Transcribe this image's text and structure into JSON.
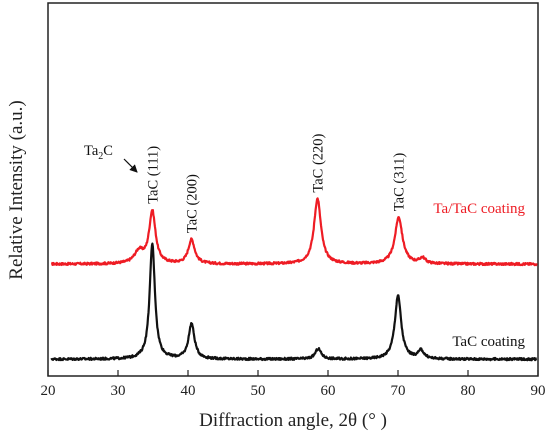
{
  "chart_data": {
    "type": "line",
    "title": "",
    "xlabel": "Diffraction angle, 2θ (° )",
    "ylabel": "Relative Intensity (a.u.)",
    "xlim": [
      20,
      90
    ],
    "xticks": [
      "20",
      "30",
      "40",
      "50",
      "60",
      "70",
      "80",
      "90"
    ],
    "yticks": [],
    "grid": false,
    "legend": "inline-right",
    "colors": {
      "top": "#ee1c24",
      "bottom": "#111111",
      "axis": "#222222"
    },
    "series": [
      {
        "name": "Ta/TaC coating",
        "color": "#ee1c24",
        "baseline": 0.3,
        "noise": 0.003,
        "peaks": [
          {
            "x": 33.0,
            "height": 0.032,
            "width": 0.8
          },
          {
            "x": 34.9,
            "height": 0.14,
            "width": 0.55
          },
          {
            "x": 40.5,
            "height": 0.065,
            "width": 0.55
          },
          {
            "x": 58.5,
            "height": 0.175,
            "width": 0.6
          },
          {
            "x": 70.1,
            "height": 0.125,
            "width": 0.65
          },
          {
            "x": 73.5,
            "height": 0.015,
            "width": 0.5
          }
        ]
      },
      {
        "name": "TaC coating",
        "color": "#111111",
        "baseline": 0.045,
        "noise": 0.003,
        "peaks": [
          {
            "x": 34.9,
            "height": 0.31,
            "width": 0.45
          },
          {
            "x": 40.5,
            "height": 0.095,
            "width": 0.5
          },
          {
            "x": 58.6,
            "height": 0.028,
            "width": 0.5
          },
          {
            "x": 70.0,
            "height": 0.17,
            "width": 0.55
          },
          {
            "x": 73.3,
            "height": 0.022,
            "width": 0.5
          }
        ]
      }
    ],
    "peak_labels": [
      {
        "text": "TaC (111)",
        "x": 34.9
      },
      {
        "text": "TaC (200)",
        "x": 40.5
      },
      {
        "text": "TaC (220)",
        "x": 58.5
      },
      {
        "text": "TaC (311)",
        "x": 70.1
      }
    ],
    "annotations": [
      {
        "main": "Ta",
        "sub": "2",
        "tail": "C",
        "x": 33.0
      }
    ]
  }
}
